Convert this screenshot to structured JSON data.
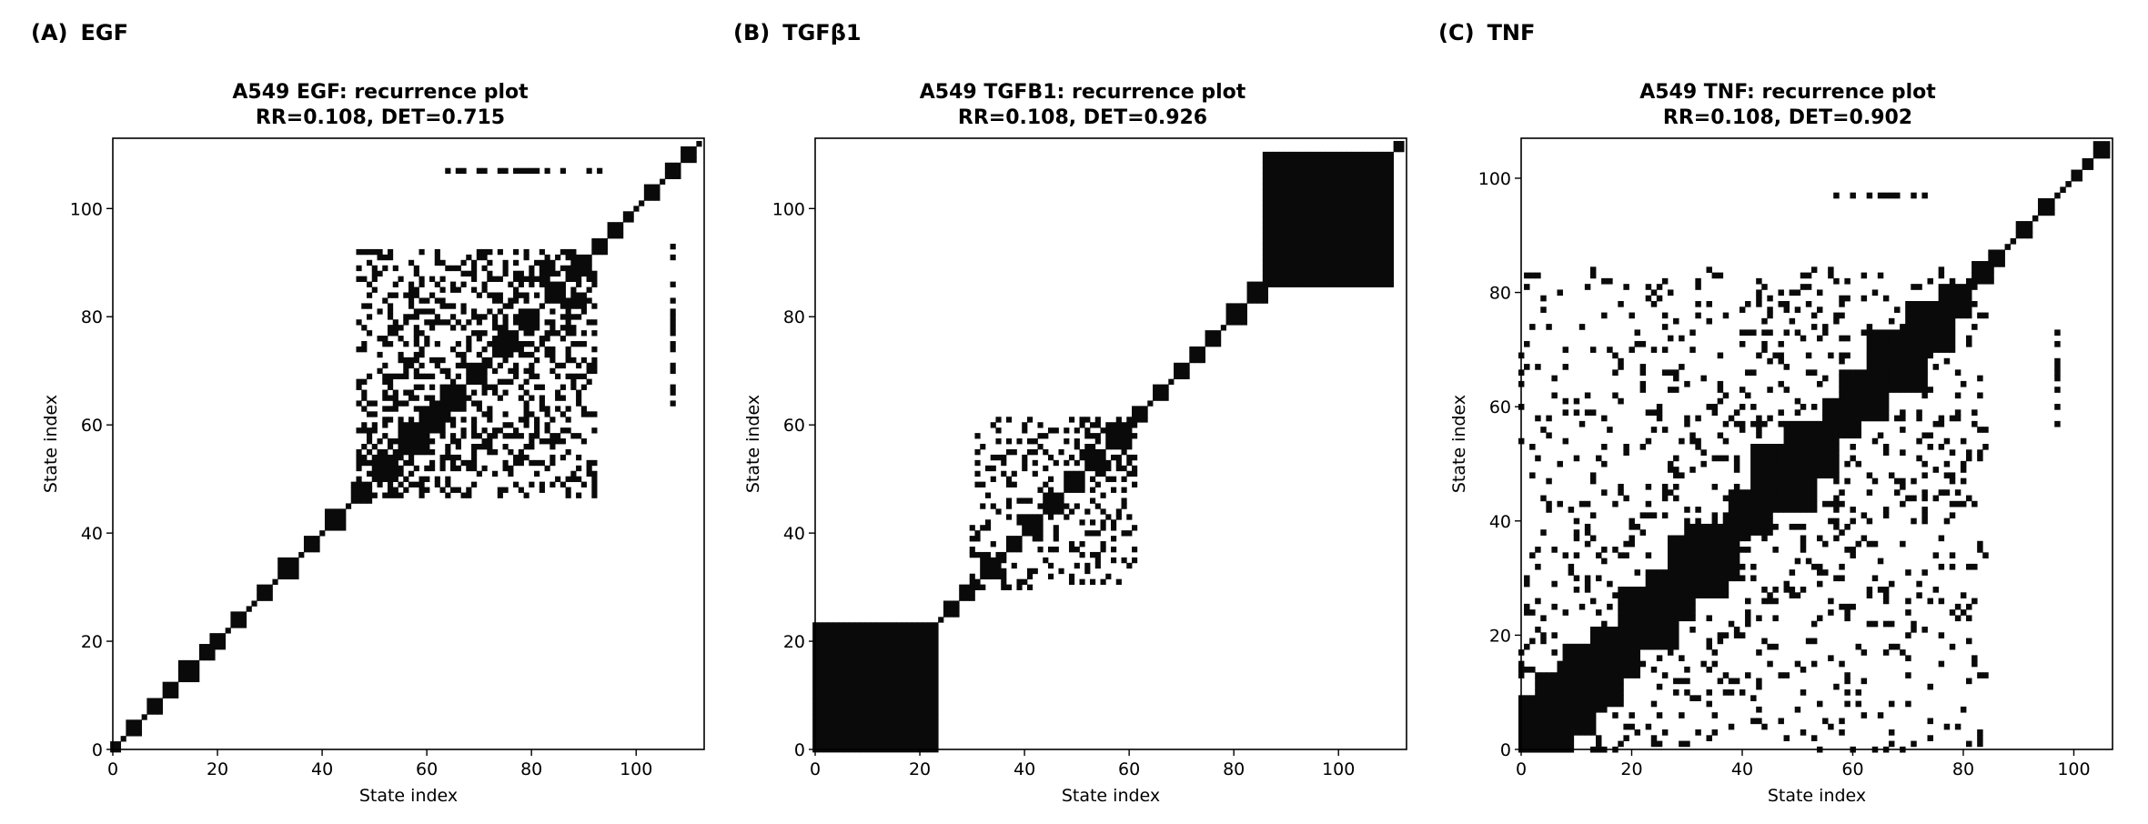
{
  "chart_data": [
    {
      "type": "heatmap",
      "panel_label": "(A)",
      "stimulus": "EGF",
      "title": "A549 EGF: recurrence plot",
      "subtitle": "RR=0.108, DET=0.715",
      "xlabel": "State index",
      "ylabel": "State index",
      "xlim": [
        0,
        113
      ],
      "ylim": [
        0,
        113
      ],
      "xticks": [
        0,
        20,
        40,
        60,
        80,
        100
      ],
      "yticks": [
        0,
        20,
        40,
        60,
        80,
        100
      ],
      "colormap": [
        "#ffffff",
        "#0a0a0a"
      ],
      "n_states": 113,
      "recurrence_blocks": [
        [
          0,
          2
        ],
        [
          3,
          6
        ],
        [
          7,
          10
        ],
        [
          10,
          13
        ],
        [
          13,
          17
        ],
        [
          17,
          20
        ],
        [
          19,
          22
        ],
        [
          23,
          26
        ],
        [
          28,
          31
        ],
        [
          32,
          36
        ],
        [
          37,
          40
        ],
        [
          41,
          45
        ],
        [
          46,
          50
        ],
        [
          50,
          55
        ],
        [
          55,
          60
        ],
        [
          59,
          64
        ],
        [
          64,
          68
        ],
        [
          68,
          72
        ],
        [
          73,
          77
        ],
        [
          78,
          82
        ],
        [
          83,
          87
        ],
        [
          88,
          92
        ],
        [
          92,
          95
        ],
        [
          95,
          98
        ],
        [
          98,
          100
        ],
        [
          102,
          105
        ],
        [
          106,
          109
        ],
        [
          109,
          112
        ]
      ],
      "scattered_recurrence_region": {
        "x": [
          47,
          92
        ],
        "y": [
          45,
          93
        ],
        "density": 0.42
      },
      "isolated_columns": [
        {
          "x": 107,
          "y": [
            64,
            96
          ]
        },
        {
          "y": 107,
          "x": [
            61,
            92
          ]
        }
      ]
    },
    {
      "type": "heatmap",
      "panel_label": "(B)",
      "stimulus": "TGFβ1",
      "title": "A549 TGFB1: recurrence plot",
      "subtitle": "RR=0.108, DET=0.926",
      "xlabel": "State index",
      "ylabel": "State index",
      "xlim": [
        0,
        113
      ],
      "ylim": [
        0,
        113
      ],
      "xticks": [
        0,
        20,
        40,
        60,
        80,
        100
      ],
      "yticks": [
        0,
        20,
        40,
        60,
        80,
        100
      ],
      "colormap": [
        "#ffffff",
        "#0a0a0a"
      ],
      "n_states": 113,
      "recurrence_blocks": [
        [
          0,
          24
        ],
        [
          25,
          28
        ],
        [
          28,
          31
        ],
        [
          32,
          36
        ],
        [
          37,
          40
        ],
        [
          40,
          44
        ],
        [
          44,
          48
        ],
        [
          48,
          52
        ],
        [
          52,
          56
        ],
        [
          56,
          61
        ],
        [
          61,
          64
        ],
        [
          65,
          68
        ],
        [
          69,
          72
        ],
        [
          72,
          75
        ],
        [
          75,
          78
        ],
        [
          79,
          83
        ],
        [
          83,
          87
        ],
        [
          86,
          111
        ],
        [
          111,
          113
        ]
      ],
      "scattered_recurrence_region": {
        "x": [
          30,
          62
        ],
        "y": [
          30,
          62
        ],
        "density": 0.3
      },
      "isolated_columns": []
    },
    {
      "type": "heatmap",
      "panel_label": "(C)",
      "stimulus": "TNF",
      "title": "A549 TNF: recurrence plot",
      "subtitle": "RR=0.108, DET=0.902",
      "xlabel": "State index",
      "ylabel": "State index",
      "xlim": [
        0,
        107
      ],
      "ylim": [
        0,
        107
      ],
      "xticks": [
        0,
        20,
        40,
        60,
        80,
        100
      ],
      "yticks": [
        0,
        20,
        40,
        60,
        80,
        100
      ],
      "colormap": [
        "#ffffff",
        "#0a0a0a"
      ],
      "n_states": 107,
      "recurrence_blocks": [
        [
          0,
          10
        ],
        [
          3,
          14
        ],
        [
          8,
          19
        ],
        [
          13,
          22
        ],
        [
          18,
          29
        ],
        [
          23,
          32
        ],
        [
          27,
          38
        ],
        [
          30,
          40
        ],
        [
          38,
          46
        ],
        [
          42,
          54
        ],
        [
          48,
          58
        ],
        [
          55,
          62
        ],
        [
          58,
          67
        ],
        [
          63,
          74
        ],
        [
          70,
          79
        ],
        [
          76,
          82
        ],
        [
          82,
          86
        ],
        [
          85,
          88
        ],
        [
          90,
          93
        ],
        [
          94,
          97
        ],
        [
          100,
          102
        ],
        [
          102,
          104
        ],
        [
          104,
          107
        ]
      ],
      "scattered_recurrence_region": {
        "x": [
          0,
          85
        ],
        "y": [
          0,
          85
        ],
        "density": 0.18
      },
      "isolated_columns": [
        {
          "x": 97,
          "y": [
            57,
            76
          ]
        },
        {
          "y": 98,
          "x": [
            55,
            66
          ]
        }
      ]
    }
  ]
}
